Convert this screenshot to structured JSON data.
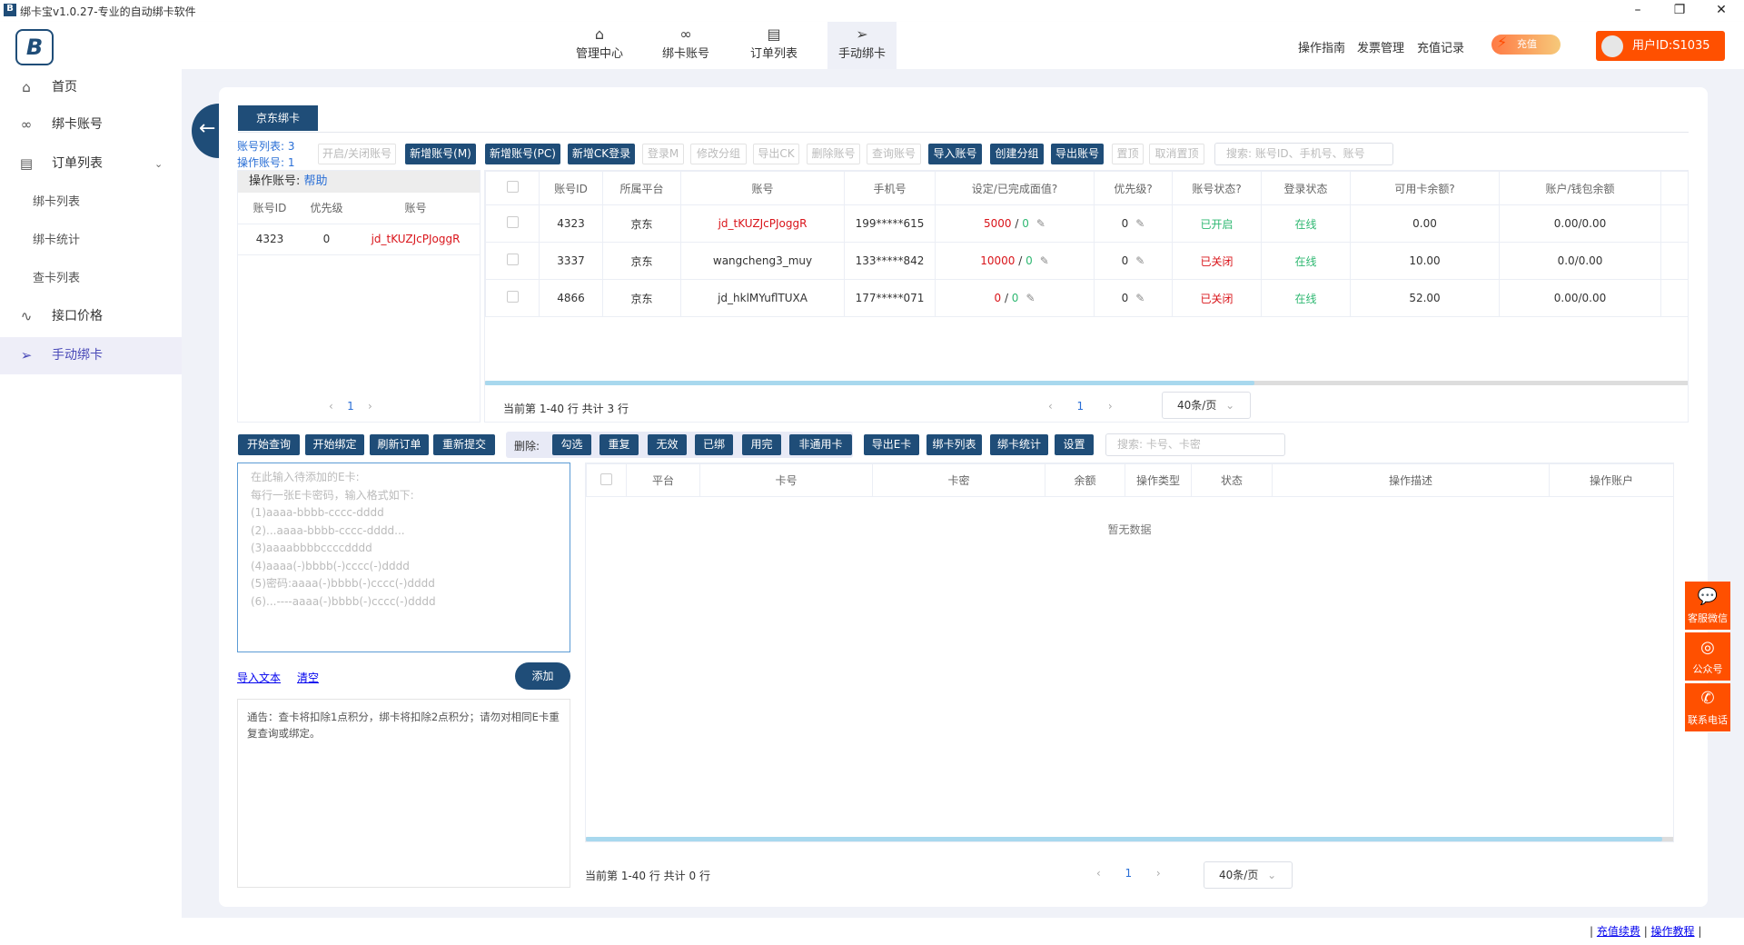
{
  "window": {
    "title": "绑卡宝v1.0.27-专业的自动绑卡软件",
    "minimize": "–",
    "maximize": "❐",
    "close": "✕"
  },
  "topnav": [
    {
      "label": "管理中心",
      "icon": "home-icon"
    },
    {
      "label": "绑卡账号",
      "icon": "link-icon"
    },
    {
      "label": "订单列表",
      "icon": "document-icon"
    },
    {
      "label": "手动绑卡",
      "icon": "send-icon",
      "active": true
    }
  ],
  "header_links": {
    "guide": "操作指南",
    "invoice": "发票管理",
    "recharge_log": "充值记录",
    "recharge_badge": "充值",
    "user": "用户ID:S1035"
  },
  "sidebar": [
    {
      "label": "首页",
      "icon": "home-icon"
    },
    {
      "label": "绑卡账号",
      "icon": "link-icon"
    },
    {
      "label": "订单列表",
      "icon": "document-icon",
      "expanded": true
    },
    {
      "label": "绑卡列表",
      "sub": true
    },
    {
      "label": "绑卡统计",
      "sub": true
    },
    {
      "label": "查卡列表",
      "sub": true
    },
    {
      "label": "接口价格",
      "icon": "pulse-icon"
    },
    {
      "label": "手动绑卡",
      "icon": "send-icon",
      "active": true
    }
  ],
  "tab": "京东绑卡",
  "account_summary": {
    "list": "账号列表: 3",
    "operating": "操作账号: 1"
  },
  "toolbar1": [
    {
      "label": "开启/关闭账号",
      "enabled": false
    },
    {
      "label": "新增账号(M)",
      "enabled": true
    },
    {
      "label": "新增账号(PC)",
      "enabled": true
    },
    {
      "label": "新增CK登录",
      "enabled": true
    },
    {
      "label": "登录M",
      "enabled": false
    },
    {
      "label": "修改分组",
      "enabled": false
    },
    {
      "label": "导出CK",
      "enabled": false
    },
    {
      "label": "删除账号",
      "enabled": false
    },
    {
      "label": "查询账号",
      "enabled": false
    },
    {
      "label": "导入账号",
      "enabled": true
    },
    {
      "label": "创建分组",
      "enabled": true
    },
    {
      "label": "导出账号",
      "enabled": true
    },
    {
      "label": "置顶",
      "enabled": false
    },
    {
      "label": "取消置顶",
      "enabled": false
    }
  ],
  "account_search_placeholder": "搜索: 账号ID、手机号、账号",
  "left_panel": {
    "title": "操作账号:",
    "help": "帮助",
    "columns": [
      "账号ID",
      "优先级",
      "账号"
    ],
    "rows": [
      [
        "4323",
        "0",
        "jd_tKUZJcPJoggR"
      ]
    ],
    "page": "1"
  },
  "accounts": {
    "columns": [
      "账号ID",
      "所属平台",
      "账号",
      "手机号",
      "设定/已完成面值?",
      "优先级?",
      "账号状态?",
      "登录状态",
      "可用卡余额?",
      "账户/钱包余额"
    ],
    "rows": [
      {
        "id": "4323",
        "platform": "京东",
        "account": "jd_tKUZJcPJoggR",
        "account_red": true,
        "phone": "199*****615",
        "set": "5000",
        "done": "0",
        "priority": "0",
        "status": "已开启",
        "status_on": true,
        "login": "在线",
        "card_balance": "0.00",
        "wallet": "0.00/0.00"
      },
      {
        "id": "3337",
        "platform": "京东",
        "account": "wangcheng3_muy",
        "account_red": false,
        "phone": "133*****842",
        "set": "10000",
        "done": "0",
        "priority": "0",
        "status": "已关闭",
        "status_on": false,
        "login": "在线",
        "card_balance": "10.00",
        "wallet": "0.0/0.00"
      },
      {
        "id": "4866",
        "platform": "京东",
        "account": "jd_hklMYuflTUXA",
        "account_red": false,
        "phone": "177*****071",
        "set": "0",
        "done": "0",
        "priority": "0",
        "status": "已关闭",
        "status_on": false,
        "login": "在线",
        "card_balance": "52.00",
        "wallet": "0.00/0.00"
      }
    ],
    "footer": "当前第 1-40 行  共计 3 行",
    "page": "1",
    "page_size": "40条/页"
  },
  "toolbar2": {
    "main": [
      "开始查询",
      "开始绑定",
      "刷新订单",
      "重新提交"
    ],
    "delete_label": "删除:",
    "delete": [
      "勾选",
      "重复",
      "无效",
      "已绑",
      "用完",
      "非通用卡"
    ],
    "extra": [
      "导出E卡",
      "绑卡列表",
      "绑卡统计",
      "设置"
    ],
    "search_placeholder": "搜索: 卡号、卡密"
  },
  "card_input": {
    "placeholder": "在此输入待添加的E卡:\n每行一张E卡密码，输入格式如下:\n(1)aaaa-bbbb-cccc-dddd\n(2)...aaaa-bbbb-cccc-dddd...\n(3)aaaabbbbccccdddd\n(4)aaaa(-)bbbb(-)cccc(-)dddd\n(5)密码:aaaa(-)bbbb(-)cccc(-)dddd\n(6)...----aaaa(-)bbbb(-)cccc(-)dddd",
    "import": "导入文本",
    "clear": "清空",
    "add": "添加"
  },
  "notice": "通告：查卡将扣除1点积分，绑卡将扣除2点积分；请勿对相同E卡重复查询或绑定。",
  "cards": {
    "columns": [
      "平台",
      "卡号",
      "卡密",
      "余额",
      "操作类型",
      "状态",
      "操作描述",
      "操作账户"
    ],
    "empty": "暂无数据",
    "footer": "当前第 1-40 行  共计 0 行",
    "page": "1",
    "page_size": "40条/页"
  },
  "float_buttons": [
    {
      "label": "客服微信",
      "icon": "wechat-icon"
    },
    {
      "label": "公众号",
      "icon": "official-account-icon"
    },
    {
      "label": "联系电话",
      "icon": "phone-icon"
    }
  ],
  "footer_links": [
    "充值续费",
    "操作教程"
  ],
  "colors": {
    "primary": "#1f4d78",
    "accent": "#ff5000",
    "red": "#d9141a",
    "green": "#2fb872"
  }
}
